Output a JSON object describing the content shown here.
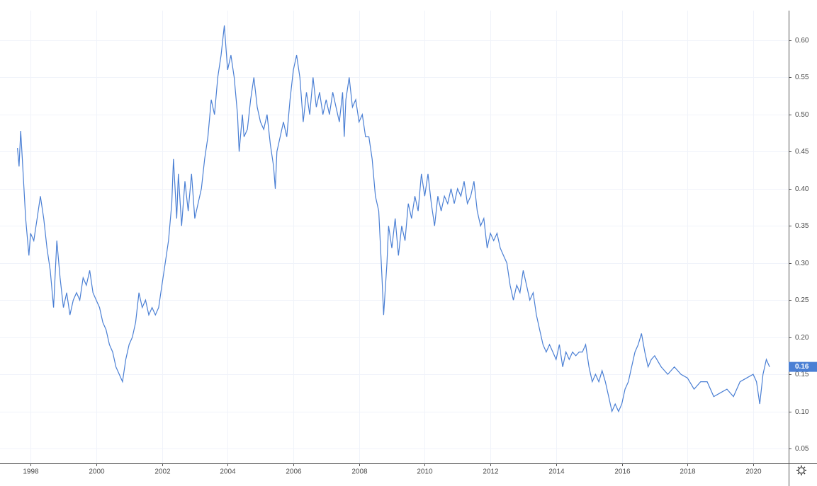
{
  "chart_data": {
    "type": "line",
    "x": [
      1997.6,
      1997.65,
      1997.7,
      1997.75,
      1997.85,
      1997.95,
      1998.0,
      1998.1,
      1998.2,
      1998.3,
      1998.4,
      1998.5,
      1998.6,
      1998.7,
      1998.8,
      1998.9,
      1999.0,
      1999.1,
      1999.2,
      1999.3,
      1999.4,
      1999.5,
      1999.6,
      1999.7,
      1999.8,
      1999.9,
      2000.0,
      2000.1,
      2000.2,
      2000.3,
      2000.4,
      2000.5,
      2000.6,
      2000.7,
      2000.8,
      2000.9,
      2001.0,
      2001.1,
      2001.2,
      2001.3,
      2001.4,
      2001.5,
      2001.6,
      2001.7,
      2001.8,
      2001.9,
      2002.0,
      2002.1,
      2002.2,
      2002.3,
      2002.35,
      2002.45,
      2002.5,
      2002.6,
      2002.7,
      2002.8,
      2002.9,
      2003.0,
      2003.1,
      2003.2,
      2003.3,
      2003.4,
      2003.5,
      2003.6,
      2003.7,
      2003.8,
      2003.9,
      2004.0,
      2004.1,
      2004.2,
      2004.3,
      2004.35,
      2004.45,
      2004.5,
      2004.6,
      2004.7,
      2004.8,
      2004.9,
      2005.0,
      2005.1,
      2005.2,
      2005.3,
      2005.4,
      2005.45,
      2005.5,
      2005.6,
      2005.7,
      2005.8,
      2005.9,
      2006.0,
      2006.1,
      2006.2,
      2006.3,
      2006.4,
      2006.5,
      2006.6,
      2006.7,
      2006.8,
      2006.9,
      2007.0,
      2007.1,
      2007.2,
      2007.3,
      2007.4,
      2007.5,
      2007.55,
      2007.6,
      2007.7,
      2007.8,
      2007.9,
      2008.0,
      2008.1,
      2008.2,
      2008.3,
      2008.4,
      2008.5,
      2008.6,
      2008.7,
      2008.75,
      2008.85,
      2008.9,
      2009.0,
      2009.1,
      2009.2,
      2009.3,
      2009.4,
      2009.5,
      2009.6,
      2009.7,
      2009.8,
      2009.9,
      2010.0,
      2010.1,
      2010.2,
      2010.3,
      2010.4,
      2010.5,
      2010.6,
      2010.7,
      2010.8,
      2010.9,
      2011.0,
      2011.1,
      2011.2,
      2011.3,
      2011.4,
      2011.5,
      2011.6,
      2011.7,
      2011.8,
      2011.9,
      2012.0,
      2012.1,
      2012.2,
      2012.3,
      2012.4,
      2012.5,
      2012.6,
      2012.7,
      2012.8,
      2012.9,
      2013.0,
      2013.1,
      2013.2,
      2013.3,
      2013.4,
      2013.5,
      2013.6,
      2013.7,
      2013.8,
      2013.9,
      2014.0,
      2014.1,
      2014.2,
      2014.3,
      2014.4,
      2014.5,
      2014.6,
      2014.7,
      2014.8,
      2014.9,
      2015.0,
      2015.1,
      2015.2,
      2015.3,
      2015.4,
      2015.5,
      2015.6,
      2015.7,
      2015.8,
      2015.9,
      2016.0,
      2016.1,
      2016.2,
      2016.3,
      2016.4,
      2016.5,
      2016.6,
      2016.7,
      2016.8,
      2016.9,
      2017.0,
      2017.2,
      2017.4,
      2017.6,
      2017.8,
      2018.0,
      2018.2,
      2018.4,
      2018.6,
      2018.8,
      2019.0,
      2019.2,
      2019.4,
      2019.6,
      2019.8,
      2020.0,
      2020.1,
      2020.2,
      2020.3,
      2020.4,
      2020.5
    ],
    "series": [
      {
        "color": "#4a7fd4",
        "values": [
          0.455,
          0.43,
          0.478,
          0.44,
          0.36,
          0.31,
          0.34,
          0.33,
          0.36,
          0.39,
          0.36,
          0.32,
          0.29,
          0.24,
          0.33,
          0.28,
          0.24,
          0.26,
          0.23,
          0.25,
          0.26,
          0.25,
          0.28,
          0.27,
          0.29,
          0.26,
          0.25,
          0.24,
          0.22,
          0.21,
          0.19,
          0.18,
          0.16,
          0.15,
          0.14,
          0.17,
          0.19,
          0.2,
          0.22,
          0.26,
          0.24,
          0.25,
          0.23,
          0.24,
          0.23,
          0.24,
          0.27,
          0.3,
          0.33,
          0.38,
          0.44,
          0.36,
          0.42,
          0.35,
          0.41,
          0.37,
          0.42,
          0.36,
          0.38,
          0.4,
          0.44,
          0.47,
          0.52,
          0.5,
          0.55,
          0.58,
          0.62,
          0.56,
          0.58,
          0.55,
          0.5,
          0.45,
          0.5,
          0.47,
          0.48,
          0.52,
          0.55,
          0.51,
          0.49,
          0.48,
          0.5,
          0.46,
          0.43,
          0.4,
          0.45,
          0.47,
          0.49,
          0.47,
          0.52,
          0.56,
          0.58,
          0.55,
          0.49,
          0.53,
          0.5,
          0.55,
          0.51,
          0.53,
          0.5,
          0.52,
          0.5,
          0.53,
          0.51,
          0.49,
          0.53,
          0.47,
          0.52,
          0.55,
          0.51,
          0.52,
          0.49,
          0.5,
          0.47,
          0.47,
          0.44,
          0.39,
          0.37,
          0.28,
          0.23,
          0.3,
          0.35,
          0.32,
          0.36,
          0.31,
          0.35,
          0.33,
          0.38,
          0.36,
          0.39,
          0.37,
          0.42,
          0.39,
          0.42,
          0.38,
          0.35,
          0.39,
          0.37,
          0.39,
          0.38,
          0.4,
          0.38,
          0.4,
          0.39,
          0.41,
          0.38,
          0.39,
          0.41,
          0.37,
          0.35,
          0.36,
          0.32,
          0.34,
          0.33,
          0.34,
          0.32,
          0.31,
          0.3,
          0.27,
          0.25,
          0.27,
          0.26,
          0.29,
          0.27,
          0.25,
          0.26,
          0.23,
          0.21,
          0.19,
          0.18,
          0.19,
          0.18,
          0.17,
          0.19,
          0.16,
          0.18,
          0.17,
          0.18,
          0.175,
          0.18,
          0.18,
          0.19,
          0.16,
          0.14,
          0.15,
          0.14,
          0.155,
          0.14,
          0.12,
          0.1,
          0.11,
          0.1,
          0.11,
          0.13,
          0.14,
          0.16,
          0.18,
          0.19,
          0.205,
          0.18,
          0.16,
          0.17,
          0.175,
          0.16,
          0.15,
          0.16,
          0.15,
          0.145,
          0.13,
          0.14,
          0.14,
          0.12,
          0.125,
          0.13,
          0.12,
          0.14,
          0.145,
          0.15,
          0.14,
          0.11,
          0.15,
          0.17,
          0.16
        ]
      }
    ],
    "xlim": [
      1997.07,
      2021.08
    ],
    "xticks": [
      1998,
      2000,
      2002,
      2004,
      2006,
      2008,
      2010,
      2012,
      2014,
      2016,
      2018,
      2020
    ],
    "ylim": [
      0.03,
      0.64
    ],
    "yticks": [
      {
        "value": 0.05,
        "label": "0.05"
      },
      {
        "value": 0.1,
        "label": "0.10"
      },
      {
        "value": 0.15,
        "label": "0.15"
      },
      {
        "value": 0.2,
        "label": "0.20"
      },
      {
        "value": 0.25,
        "label": "0.25"
      },
      {
        "value": 0.3,
        "label": "0.30"
      },
      {
        "value": 0.35,
        "label": "0.35"
      },
      {
        "value": 0.4,
        "label": "0.40"
      },
      {
        "value": 0.45,
        "label": "0.45"
      },
      {
        "value": 0.5,
        "label": "0.50"
      },
      {
        "value": 0.55,
        "label": "0.55"
      },
      {
        "value": 0.6,
        "label": "0.60"
      }
    ],
    "last_value_label": "0.16",
    "grid": true
  }
}
